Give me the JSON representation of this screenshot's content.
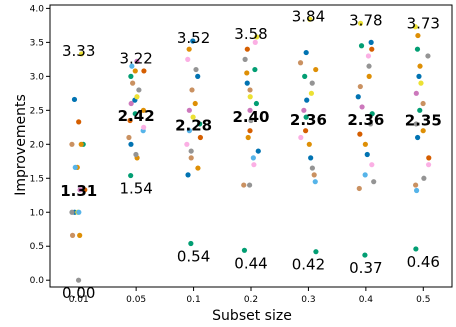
{
  "chart_data": {
    "type": "scatter",
    "xlabel": "Subset size",
    "ylabel": "Improvements",
    "categories": [
      "0.01",
      "0.05",
      "0.1",
      "0.2",
      "0.3",
      "0.4",
      "0.5"
    ],
    "ylim": [
      -0.1,
      4.05
    ],
    "yticks": [
      0.0,
      0.5,
      1.0,
      1.5,
      2.0,
      2.5,
      3.0,
      3.5,
      4.0
    ],
    "ytick_labels": [
      "0.0",
      "0.5",
      "1.0",
      "1.5",
      "2.0",
      "2.5",
      "3.0",
      "3.5",
      "4.0"
    ],
    "grid": false,
    "max_labels": [
      "3.33",
      "3.22",
      "3.52",
      "3.58",
      "3.84",
      "3.78",
      "3.73"
    ],
    "mean_labels": [
      "1.31",
      "2.42",
      "2.28",
      "2.40",
      "2.36",
      "2.36",
      "2.35"
    ],
    "min_labels": [
      "0.00",
      "1.54",
      "0.54",
      "0.44",
      "0.42",
      "0.37",
      "0.46"
    ],
    "max_values": [
      3.33,
      3.22,
      3.52,
      3.58,
      3.84,
      3.78,
      3.73
    ],
    "mean_values": [
      1.31,
      2.42,
      2.28,
      2.4,
      2.36,
      2.36,
      2.35
    ],
    "min_values": [
      0.0,
      1.54,
      0.54,
      0.44,
      0.42,
      0.37,
      0.46
    ],
    "palette": [
      "#0173b2",
      "#de8f05",
      "#029e73",
      "#d55e00",
      "#cc78bc",
      "#ca9161",
      "#fbafe4",
      "#949494",
      "#ece133",
      "#56b4e9"
    ],
    "points": [
      [
        [
          0.0,
          "#949494"
        ],
        [
          0.66,
          "#de8f05"
        ],
        [
          0.66,
          "#ca9161"
        ],
        [
          1.0,
          "#0173b2"
        ],
        [
          1.0,
          "#ece133"
        ],
        [
          1.0,
          "#56b4e9"
        ],
        [
          1.0,
          "#949494"
        ],
        [
          1.33,
          "#d55e00"
        ],
        [
          1.33,
          "#cc78bc"
        ],
        [
          1.66,
          "#de8f05"
        ],
        [
          1.66,
          "#56b4e9"
        ],
        [
          2.0,
          "#029e73"
        ],
        [
          2.0,
          "#de8f05"
        ],
        [
          2.0,
          "#ca9161"
        ],
        [
          2.33,
          "#d55e00"
        ],
        [
          2.66,
          "#0173b2"
        ],
        [
          3.33,
          "#ece133"
        ]
      ],
      [
        [
          1.54,
          "#029e73"
        ],
        [
          1.8,
          "#de8f05"
        ],
        [
          1.85,
          "#949494"
        ],
        [
          2.0,
          "#0173b2"
        ],
        [
          2.1,
          "#ca9161"
        ],
        [
          2.2,
          "#56b4e9"
        ],
        [
          2.25,
          "#fbafe4"
        ],
        [
          2.35,
          "#d55e00"
        ],
        [
          2.45,
          "#029e73"
        ],
        [
          2.5,
          "#de8f05"
        ],
        [
          2.6,
          "#cc78bc"
        ],
        [
          2.65,
          "#0173b2"
        ],
        [
          2.7,
          "#ece133"
        ],
        [
          2.8,
          "#949494"
        ],
        [
          2.9,
          "#ca9161"
        ],
        [
          3.0,
          "#029e73"
        ],
        [
          3.08,
          "#d55e00"
        ],
        [
          3.08,
          "#de8f05"
        ],
        [
          3.15,
          "#56b4e9"
        ],
        [
          3.22,
          "#cc78bc"
        ]
      ],
      [
        [
          0.54,
          "#029e73"
        ],
        [
          1.55,
          "#0173b2"
        ],
        [
          1.65,
          "#de8f05"
        ],
        [
          1.8,
          "#ca9161"
        ],
        [
          1.9,
          "#949494"
        ],
        [
          2.0,
          "#fbafe4"
        ],
        [
          2.1,
          "#d55e00"
        ],
        [
          2.2,
          "#56b4e9"
        ],
        [
          2.3,
          "#029e73"
        ],
        [
          2.4,
          "#ece133"
        ],
        [
          2.5,
          "#cc78bc"
        ],
        [
          2.6,
          "#de8f05"
        ],
        [
          2.8,
          "#ca9161"
        ],
        [
          3.0,
          "#0173b2"
        ],
        [
          3.1,
          "#949494"
        ],
        [
          3.25,
          "#fbafe4"
        ],
        [
          3.4,
          "#de8f05"
        ],
        [
          3.52,
          "#0173b2"
        ]
      ],
      [
        [
          0.44,
          "#029e73"
        ],
        [
          1.4,
          "#ca9161"
        ],
        [
          1.4,
          "#949494"
        ],
        [
          1.7,
          "#fbafe4"
        ],
        [
          1.8,
          "#56b4e9"
        ],
        [
          1.9,
          "#0173b2"
        ],
        [
          2.1,
          "#de8f05"
        ],
        [
          2.2,
          "#d55e00"
        ],
        [
          2.35,
          "#949494"
        ],
        [
          2.5,
          "#cc78bc"
        ],
        [
          2.6,
          "#029e73"
        ],
        [
          2.7,
          "#ece133"
        ],
        [
          2.8,
          "#ca9161"
        ],
        [
          2.9,
          "#0173b2"
        ],
        [
          3.05,
          "#de8f05"
        ],
        [
          3.1,
          "#029e73"
        ],
        [
          3.25,
          "#949494"
        ],
        [
          3.4,
          "#d55e00"
        ],
        [
          3.5,
          "#fbafe4"
        ],
        [
          3.58,
          "#ece133"
        ]
      ],
      [
        [
          0.42,
          "#029e73"
        ],
        [
          1.45,
          "#56b4e9"
        ],
        [
          1.55,
          "#ca9161"
        ],
        [
          1.65,
          "#949494"
        ],
        [
          1.8,
          "#0173b2"
        ],
        [
          2.0,
          "#de8f05"
        ],
        [
          2.1,
          "#fbafe4"
        ],
        [
          2.2,
          "#d55e00"
        ],
        [
          2.4,
          "#029e73"
        ],
        [
          2.5,
          "#cc78bc"
        ],
        [
          2.65,
          "#0173b2"
        ],
        [
          2.75,
          "#ece133"
        ],
        [
          2.9,
          "#949494"
        ],
        [
          3.0,
          "#029e73"
        ],
        [
          3.1,
          "#de8f05"
        ],
        [
          3.2,
          "#ca9161"
        ],
        [
          3.35,
          "#0173b2"
        ],
        [
          3.84,
          "#ece133"
        ]
      ],
      [
        [
          0.37,
          "#029e73"
        ],
        [
          1.35,
          "#ca9161"
        ],
        [
          1.45,
          "#949494"
        ],
        [
          1.55,
          "#56b4e9"
        ],
        [
          1.7,
          "#fbafe4"
        ],
        [
          1.85,
          "#0173b2"
        ],
        [
          2.0,
          "#de8f05"
        ],
        [
          2.15,
          "#d55e00"
        ],
        [
          2.3,
          "#949494"
        ],
        [
          2.45,
          "#029e73"
        ],
        [
          2.55,
          "#cc78bc"
        ],
        [
          2.7,
          "#0173b2"
        ],
        [
          2.85,
          "#ca9161"
        ],
        [
          3.0,
          "#de8f05"
        ],
        [
          3.15,
          "#949494"
        ],
        [
          3.3,
          "#fbafe4"
        ],
        [
          3.4,
          "#d55e00"
        ],
        [
          3.45,
          "#029e73"
        ],
        [
          3.5,
          "#0173b2"
        ],
        [
          3.78,
          "#ece133"
        ]
      ],
      [
        [
          0.46,
          "#029e73"
        ],
        [
          1.32,
          "#56b4e9"
        ],
        [
          1.4,
          "#ca9161"
        ],
        [
          1.5,
          "#949494"
        ],
        [
          1.7,
          "#fbafe4"
        ],
        [
          1.8,
          "#d55e00"
        ],
        [
          2.1,
          "#0173b2"
        ],
        [
          2.2,
          "#de8f05"
        ],
        [
          2.3,
          "#949494"
        ],
        [
          2.5,
          "#029e73"
        ],
        [
          2.6,
          "#ca9161"
        ],
        [
          2.75,
          "#cc78bc"
        ],
        [
          2.9,
          "#ece133"
        ],
        [
          3.0,
          "#0173b2"
        ],
        [
          3.15,
          "#de8f05"
        ],
        [
          3.3,
          "#949494"
        ],
        [
          3.4,
          "#029e73"
        ],
        [
          3.6,
          "#de8f05"
        ],
        [
          3.73,
          "#ece133"
        ]
      ]
    ]
  }
}
